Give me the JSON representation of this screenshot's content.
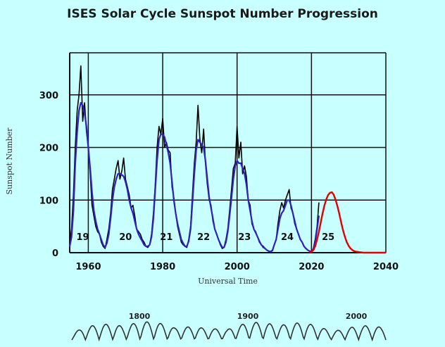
{
  "chart_data": {
    "type": "line",
    "title": "ISES Solar Cycle Sunspot Number Progression",
    "xlabel": "Universal Time",
    "ylabel": "Sunspot Number",
    "xlim": [
      1955,
      2040
    ],
    "ylim": [
      0,
      380
    ],
    "x_ticks": [
      1960,
      1980,
      2000,
      2020,
      2040
    ],
    "y_ticks": [
      0,
      100,
      200,
      300
    ],
    "grid": true,
    "cycle_labels": [
      {
        "label": "19",
        "x": 1958.5
      },
      {
        "label": "20",
        "x": 1970
      },
      {
        "label": "21",
        "x": 1981
      },
      {
        "label": "22",
        "x": 1991
      },
      {
        "label": "23",
        "x": 2002
      },
      {
        "label": "24",
        "x": 2013.5
      },
      {
        "label": "25",
        "x": 2024.5
      }
    ],
    "series": [
      {
        "color": "#000000",
        "x": [
          1955.0,
          1955.5,
          1956.0,
          1956.5,
          1957.0,
          1957.5,
          1958.0,
          1958.5,
          1959.0,
          1959.5,
          1960.0,
          1960.5,
          1961.0,
          1961.5,
          1962.0,
          1962.5,
          1963.0,
          1963.5,
          1964.0,
          1964.5,
          1965.0,
          1965.5,
          1966.0,
          1966.5,
          1967.0,
          1967.5,
          1968.0,
          1968.5,
          1969.0,
          1969.5,
          1970.0,
          1970.5,
          1971.0,
          1971.5,
          1972.0,
          1972.5,
          1973.0,
          1973.5,
          1974.0,
          1974.5,
          1975.0,
          1975.5,
          1976.0,
          1976.5,
          1977.0,
          1977.5,
          1978.0,
          1978.5,
          1979.0,
          1979.5,
          1980.0,
          1980.5,
          1981.0,
          1981.5,
          1982.0,
          1982.5,
          1983.0,
          1983.5,
          1984.0,
          1984.5,
          1985.0,
          1985.5,
          1986.0,
          1986.5,
          1987.0,
          1987.5,
          1988.0,
          1988.5,
          1989.0,
          1989.5,
          1990.0,
          1990.5,
          1991.0,
          1991.5,
          1992.0,
          1992.5,
          1993.0,
          1993.5,
          1994.0,
          1994.5,
          1995.0,
          1995.5,
          1996.0,
          1996.5,
          1997.0,
          1997.5,
          1998.0,
          1998.5,
          1999.0,
          1999.5,
          2000.0,
          2000.5,
          2001.0,
          2001.5,
          2002.0,
          2002.5,
          2003.0,
          2003.5,
          2004.0,
          2004.5,
          2005.0,
          2005.5,
          2006.0,
          2006.5,
          2007.0,
          2007.5,
          2008.0,
          2008.5,
          2009.0,
          2009.5,
          2010.0,
          2010.5,
          2011.0,
          2011.5,
          2012.0,
          2012.5,
          2013.0,
          2013.5,
          2014.0,
          2014.5,
          2015.0,
          2015.5,
          2016.0,
          2016.5,
          2017.0,
          2017.5,
          2018.0,
          2018.5,
          2019.0,
          2019.5,
          2020.0,
          2020.5,
          2021.0,
          2021.5,
          2022.0
        ],
        "y": [
          15,
          45,
          110,
          200,
          270,
          300,
          355,
          250,
          285,
          230,
          200,
          150,
          90,
          70,
          50,
          40,
          35,
          20,
          12,
          8,
          25,
          45,
          75,
          120,
          140,
          160,
          175,
          140,
          155,
          180,
          140,
          125,
          110,
          85,
          90,
          70,
          45,
          40,
          35,
          25,
          20,
          12,
          10,
          15,
          35,
          75,
          130,
          200,
          240,
          225,
          255,
          200,
          210,
          195,
          190,
          125,
          105,
          75,
          50,
          35,
          20,
          15,
          12,
          10,
          25,
          50,
          110,
          170,
          210,
          280,
          215,
          190,
          235,
          170,
          130,
          100,
          90,
          60,
          45,
          35,
          25,
          15,
          8,
          10,
          25,
          45,
          80,
          120,
          160,
          170,
          240,
          180,
          210,
          150,
          165,
          145,
          100,
          90,
          55,
          45,
          40,
          30,
          20,
          15,
          10,
          8,
          5,
          3,
          2,
          5,
          15,
          25,
          55,
          80,
          95,
          85,
          100,
          110,
          120,
          85,
          75,
          55,
          45,
          35,
          25,
          20,
          12,
          8,
          5,
          3,
          2,
          8,
          25,
          50,
          95
        ]
      },
      {
        "color": "#3020c0",
        "x": [
          1955.0,
          1955.5,
          1956.0,
          1956.5,
          1957.0,
          1957.5,
          1958.0,
          1958.5,
          1959.0,
          1959.5,
          1960.0,
          1960.5,
          1961.0,
          1961.5,
          1962.0,
          1962.5,
          1963.0,
          1963.5,
          1964.0,
          1964.5,
          1965.0,
          1965.5,
          1966.0,
          1966.5,
          1967.0,
          1967.5,
          1968.0,
          1968.5,
          1969.0,
          1969.5,
          1970.0,
          1970.5,
          1971.0,
          1971.5,
          1972.0,
          1972.5,
          1973.0,
          1973.5,
          1974.0,
          1974.5,
          1975.0,
          1975.5,
          1976.0,
          1976.5,
          1977.0,
          1977.5,
          1978.0,
          1978.5,
          1979.0,
          1979.5,
          1980.0,
          1980.5,
          1981.0,
          1981.5,
          1982.0,
          1982.5,
          1983.0,
          1983.5,
          1984.0,
          1984.5,
          1985.0,
          1985.5,
          1986.0,
          1986.5,
          1987.0,
          1987.5,
          1988.0,
          1988.5,
          1989.0,
          1989.5,
          1990.0,
          1990.5,
          1991.0,
          1991.5,
          1992.0,
          1992.5,
          1993.0,
          1993.5,
          1994.0,
          1994.5,
          1995.0,
          1995.5,
          1996.0,
          1996.5,
          1997.0,
          1997.5,
          1998.0,
          1998.5,
          1999.0,
          1999.5,
          2000.0,
          2000.5,
          2001.0,
          2001.5,
          2002.0,
          2002.5,
          2003.0,
          2003.5,
          2004.0,
          2004.5,
          2005.0,
          2005.5,
          2006.0,
          2006.5,
          2007.0,
          2007.5,
          2008.0,
          2008.5,
          2009.0,
          2009.5,
          2010.0,
          2010.5,
          2011.0,
          2011.5,
          2012.0,
          2012.5,
          2013.0,
          2013.5,
          2014.0,
          2014.5,
          2015.0,
          2015.5,
          2016.0,
          2016.5,
          2017.0,
          2017.5,
          2018.0,
          2018.5,
          2019.0,
          2019.5,
          2020.0,
          2020.5,
          2021.0,
          2021.5,
          2022.0
        ],
        "y": [
          12,
          30,
          80,
          170,
          230,
          270,
          285,
          280,
          265,
          240,
          200,
          160,
          115,
          80,
          60,
          45,
          35,
          25,
          15,
          10,
          18,
          35,
          65,
          100,
          125,
          140,
          150,
          150,
          148,
          145,
          135,
          120,
          100,
          85,
          75,
          60,
          45,
          35,
          28,
          22,
          15,
          12,
          12,
          15,
          30,
          65,
          120,
          175,
          215,
          225,
          225,
          220,
          205,
          190,
          170,
          135,
          100,
          75,
          55,
          40,
          25,
          18,
          12,
          12,
          22,
          45,
          95,
          150,
          195,
          215,
          210,
          205,
          200,
          175,
          140,
          105,
          85,
          65,
          45,
          35,
          25,
          17,
          10,
          10,
          20,
          40,
          70,
          105,
          140,
          165,
          175,
          170,
          170,
          160,
          150,
          130,
          100,
          80,
          60,
          45,
          38,
          30,
          22,
          15,
          12,
          8,
          5,
          3,
          2,
          4,
          15,
          25,
          45,
          65,
          75,
          80,
          90,
          100,
          100,
          90,
          75,
          60,
          45,
          35,
          25,
          20,
          12,
          8,
          5,
          3,
          2,
          7,
          20,
          45,
          70
        ]
      },
      {
        "color": "#e00000",
        "x": [
          2019.5,
          2020.0,
          2020.5,
          2021.0,
          2021.5,
          2022.0,
          2022.5,
          2023.0,
          2023.5,
          2024.0,
          2024.5,
          2025.0,
          2025.5,
          2026.0,
          2026.5,
          2027.0,
          2027.5,
          2028.0,
          2028.5,
          2029.0,
          2029.5,
          2030.0,
          2030.5,
          2031.0,
          2031.5,
          2032.0,
          2033.0,
          2034.0,
          2035.0,
          2036.0,
          2037.0,
          2038.0,
          2039.0,
          2040.0
        ],
        "y": [
          1,
          2,
          5,
          12,
          25,
          40,
          58,
          75,
          90,
          102,
          110,
          114,
          115,
          110,
          100,
          88,
          73,
          57,
          42,
          30,
          20,
          13,
          8,
          5,
          3,
          2,
          1,
          0,
          0,
          0,
          0,
          0,
          0,
          0
        ]
      }
    ]
  },
  "historical_strip": {
    "labels": [
      "1800",
      "1900",
      "2000"
    ]
  }
}
